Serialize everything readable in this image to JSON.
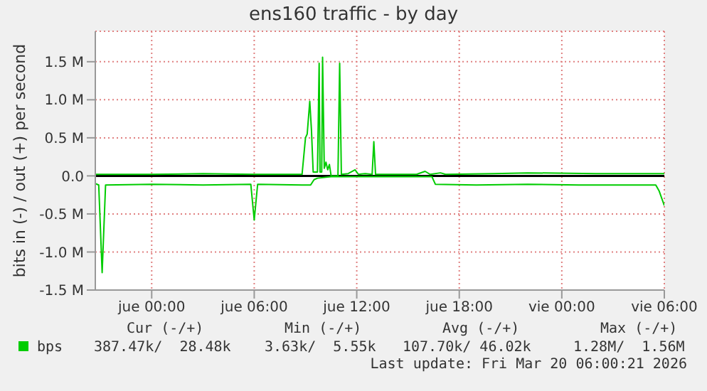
{
  "chart_data": {
    "type": "line",
    "title": "ens160 traffic - by day",
    "ylabel": "bits in (-) / out (+) per second",
    "xlim": [
      "2026-03-18T20:42",
      "2026-03-20T06:00"
    ],
    "xticks": [
      {
        "value": "2026-03-19T00:00",
        "label": "jue 00:00"
      },
      {
        "value": "2026-03-19T06:00",
        "label": "jue 06:00"
      },
      {
        "value": "2026-03-19T12:00",
        "label": "jue 12:00"
      },
      {
        "value": "2026-03-19T18:00",
        "label": "jue 18:00"
      },
      {
        "value": "2026-03-20T00:00",
        "label": "vie 00:00"
      },
      {
        "value": "2026-03-20T06:00",
        "label": "vie 06:00"
      }
    ],
    "ylim": [
      -1.5,
      1.9
    ],
    "yticks": [
      {
        "value": -1.5,
        "label": "-1.5 M"
      },
      {
        "value": -1,
        "label": "-1.0 M"
      },
      {
        "value": -0.5,
        "label": "-0.5 M"
      },
      {
        "value": 0,
        "label": "0.0"
      },
      {
        "value": 0.5,
        "label": "0.5 M"
      },
      {
        "value": 1,
        "label": "1.0 M"
      },
      {
        "value": 1.5,
        "label": "1.5 M"
      }
    ],
    "grid": true,
    "legend": "bottom",
    "marker": "none",
    "line_style": "solid",
    "ref_lines": [
      {
        "axis": "y",
        "value": 0,
        "color": "#000000"
      }
    ],
    "series": [
      {
        "name": "bps",
        "color": "#00cc00",
        "x": [
          "2026-03-18T20:42",
          "2026-03-19T00:00",
          "2026-03-19T03:00",
          "2026-03-19T06:00",
          "2026-03-19T08:48",
          "2026-03-19T09:00",
          "2026-03-19T09:06",
          "2026-03-19T09:15",
          "2026-03-19T09:21",
          "2026-03-19T09:27",
          "2026-03-19T09:42",
          "2026-03-19T09:48",
          "2026-03-19T09:51",
          "2026-03-19T09:57",
          "2026-03-19T10:00",
          "2026-03-19T10:06",
          "2026-03-19T10:12",
          "2026-03-19T10:18",
          "2026-03-19T10:24",
          "2026-03-19T10:30",
          "2026-03-19T10:54",
          "2026-03-19T11:00",
          "2026-03-19T11:06",
          "2026-03-19T11:30",
          "2026-03-19T11:54",
          "2026-03-19T12:06",
          "2026-03-19T12:30",
          "2026-03-19T12:54",
          "2026-03-19T13:00",
          "2026-03-19T13:06",
          "2026-03-19T14:00",
          "2026-03-19T15:30",
          "2026-03-19T16:00",
          "2026-03-19T16:18",
          "2026-03-19T16:54",
          "2026-03-19T17:12",
          "2026-03-19T20:00",
          "2026-03-19T22:00",
          "2026-03-20T02:00",
          "2026-03-20T06:00"
        ],
        "values": [
          0.02,
          0.02,
          0.03,
          0.02,
          0.02,
          0.5,
          0.55,
          0.98,
          0.6,
          0.05,
          0.05,
          1.48,
          0.05,
          0.05,
          1.56,
          0.1,
          0.18,
          0.08,
          0.15,
          0.0,
          0.0,
          1.48,
          0.02,
          0.03,
          0.08,
          0.02,
          0.03,
          0.02,
          0.45,
          0.02,
          0.02,
          0.02,
          0.06,
          0.02,
          0.04,
          0.02,
          0.03,
          0.04,
          0.03,
          0.03
        ]
      },
      {
        "color": "#00cc00",
        "x": [
          "2026-03-18T20:42",
          "2026-03-18T20:54",
          "2026-03-18T21:06",
          "2026-03-18T21:18",
          "2026-03-19T00:00",
          "2026-03-19T03:00",
          "2026-03-19T05:48",
          "2026-03-19T06:00",
          "2026-03-19T06:12",
          "2026-03-19T08:48",
          "2026-03-19T09:18",
          "2026-03-19T09:30",
          "2026-03-19T09:42",
          "2026-03-19T10:30",
          "2026-03-19T13:00",
          "2026-03-19T16:00",
          "2026-03-19T16:24",
          "2026-03-19T16:36",
          "2026-03-19T19:00",
          "2026-03-19T22:00",
          "2026-03-20T01:00",
          "2026-03-20T05:30",
          "2026-03-20T05:42",
          "2026-03-20T06:00"
        ],
        "values": [
          -0.1,
          -0.12,
          -1.27,
          -0.12,
          -0.11,
          -0.12,
          -0.11,
          -0.58,
          -0.11,
          -0.12,
          -0.12,
          -0.05,
          -0.03,
          -0.01,
          -0.01,
          -0.01,
          -0.01,
          -0.11,
          -0.12,
          -0.11,
          -0.12,
          -0.12,
          -0.2,
          -0.39
        ]
      }
    ],
    "annotations": [
      "Cur (-/+)",
      "Min (-/+)",
      "Avg (-/+)",
      "Max (-/+)",
      "387.47k/  28.48k",
      "3.63k/  5.55k",
      "107.70k/ 46.02k",
      "1.28M/  1.56M",
      "Last update: Fri Mar 20 06:00:21 2026"
    ]
  }
}
